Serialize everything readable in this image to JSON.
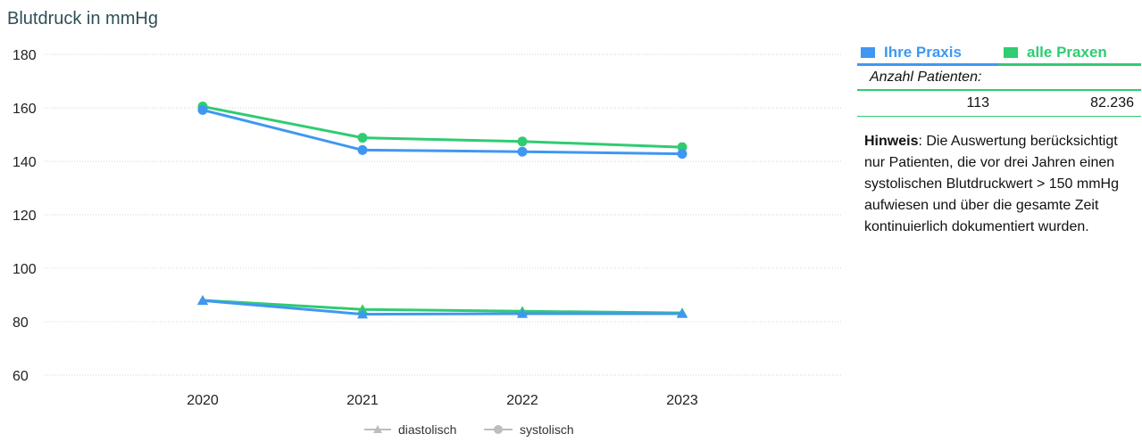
{
  "chart_data": {
    "type": "line",
    "title": "Blutdruck in mmHg",
    "categories": [
      "2020",
      "2021",
      "2022",
      "2023"
    ],
    "ylim": [
      60,
      180
    ],
    "yticks": [
      60,
      80,
      100,
      120,
      140,
      160,
      180
    ],
    "grid": true,
    "legend_position": "bottom",
    "legend": [
      {
        "label": "diastolisch",
        "marker": "triangle"
      },
      {
        "label": "systolisch",
        "marker": "circle"
      }
    ],
    "groups": [
      {
        "name": "Ihre Praxis",
        "color": "#3f97f2"
      },
      {
        "name": "alle Praxen",
        "color": "#2fcc71"
      }
    ],
    "series": [
      {
        "group": "alle Praxen",
        "measure": "systolisch",
        "marker": "circle",
        "color": "#2fcc71",
        "values": [
          160.5,
          148.8,
          147.4,
          145.3
        ]
      },
      {
        "group": "Ihre Praxis",
        "measure": "systolisch",
        "marker": "circle",
        "color": "#3f97f2",
        "values": [
          159.2,
          144.2,
          143.6,
          142.8
        ]
      },
      {
        "group": "alle Praxen",
        "measure": "diastolisch",
        "marker": "triangle",
        "color": "#2fcc71",
        "values": [
          88.0,
          84.6,
          83.9,
          83.3
        ]
      },
      {
        "group": "Ihre Praxis",
        "measure": "diastolisch",
        "marker": "triangle",
        "color": "#3f97f2",
        "values": [
          87.9,
          82.8,
          83.0,
          83.0
        ]
      }
    ]
  },
  "side": {
    "own_label": "Ihre Praxis",
    "all_label": "alle Praxen",
    "own_color": "#3f97f2",
    "all_color": "#2fcc71",
    "count_label": "Anzahl Patienten:",
    "own_count": "113",
    "all_count": "82.236",
    "note_bold": "Hinweis",
    "note_text": ": Die Auswertung berücksichtigt nur Patienten, die vor drei Jahren einen systolischen Blutdruckwert > 150 mmHg aufwiesen und über die gesamte Zeit kontinuierlich dokumentiert wurden."
  }
}
